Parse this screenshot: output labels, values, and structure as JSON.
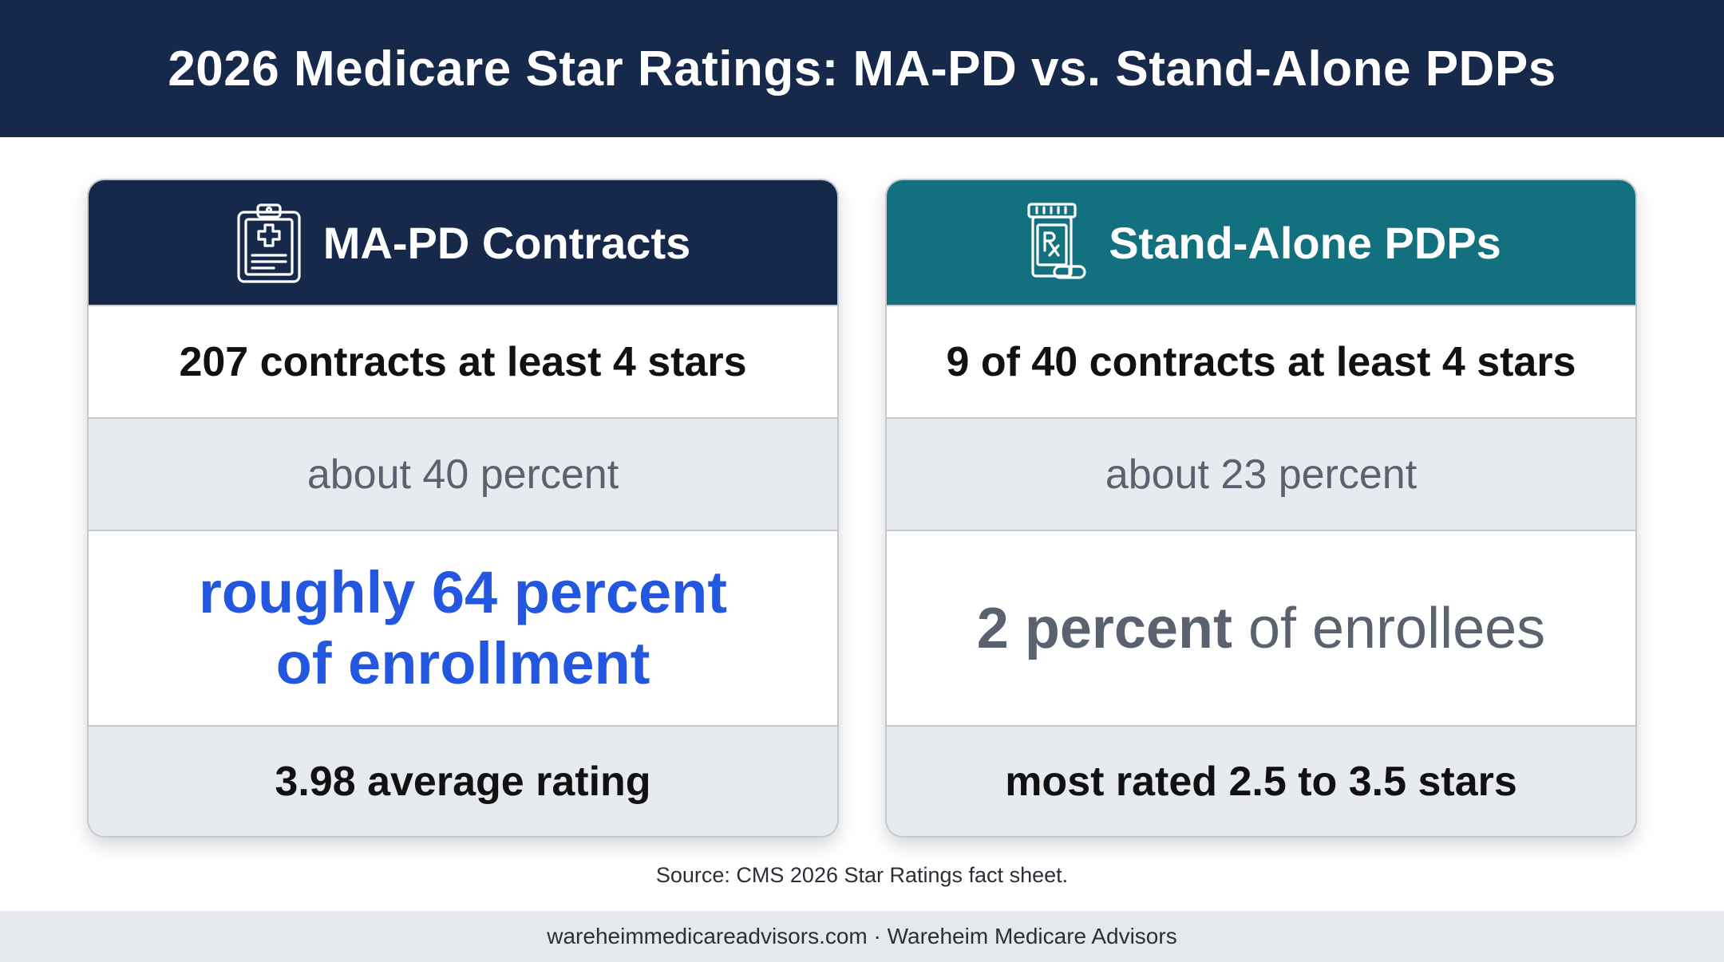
{
  "header": {
    "title": "2026 Medicare Star Ratings: MA-PD vs. Stand-Alone PDPs"
  },
  "cards": {
    "mapd": {
      "title": "MA-PD Contracts",
      "icon": "clipboard-medical-icon",
      "contracts": "207 contracts at least 4 stars",
      "percent": "about 40 percent",
      "enrollment_line1": "roughly 64 percent",
      "enrollment_line2": "of enrollment",
      "rating": "3.98 average rating"
    },
    "pdp": {
      "title": "Stand-Alone PDPs",
      "icon": "prescription-bottle-icon",
      "contracts": "9 of 40 contracts at least 4 stars",
      "percent": "about 23 percent",
      "enrollment_strong": "2 percent",
      "enrollment_rest": " of enrollees",
      "rating": "most rated 2.5 to 3.5 stars"
    }
  },
  "source": "Source: CMS 2026 Star Ratings fact sheet.",
  "footer": "wareheimmedicareadvisors.com · Wareheim Medicare Advisors",
  "colors": {
    "navy": "#16294a",
    "teal": "#13707f",
    "blue_highlight": "#2457e0",
    "row_gray": "#e7eaef"
  }
}
